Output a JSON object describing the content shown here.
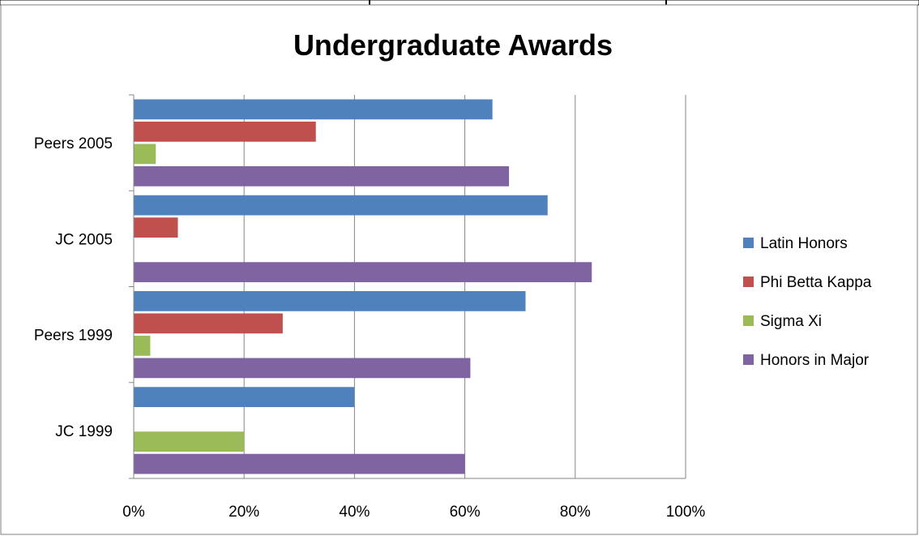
{
  "chart_data": {
    "type": "bar",
    "orientation": "horizontal",
    "title": "Undergraduate Awards",
    "categories": [
      "Peers 2005",
      "JC 2005",
      "Peers 1999",
      "JC 1999"
    ],
    "series": [
      {
        "name": "Latin Honors",
        "color": "#4F81BD",
        "values": [
          65,
          75,
          71,
          40
        ]
      },
      {
        "name": "Phi Betta Kappa",
        "color": "#C0504D",
        "values": [
          33,
          8,
          27,
          0
        ]
      },
      {
        "name": "Sigma Xi",
        "color": "#9BBB59",
        "values": [
          4,
          0,
          3,
          20
        ]
      },
      {
        "name": "Honors in Major",
        "color": "#8064A2",
        "values": [
          68,
          83,
          61,
          60
        ]
      }
    ],
    "xlim": [
      0,
      100
    ],
    "x_ticks": [
      "0%",
      "20%",
      "40%",
      "60%",
      "80%",
      "100%"
    ],
    "value_unit": "%",
    "grid": true,
    "legend_position": "right"
  }
}
